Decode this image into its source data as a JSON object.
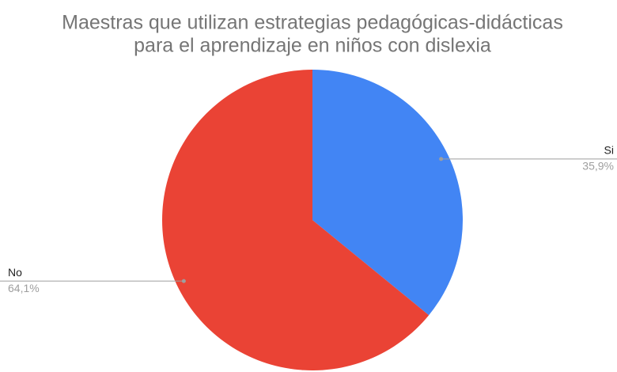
{
  "chart_data": {
    "type": "pie",
    "title": [
      "Maestras que utilizan estrategias pedagógicas-didácticas",
      "para el aprendizaje en niños con dislexia"
    ],
    "categories": [
      "Si",
      "No"
    ],
    "values": [
      35.9,
      64.1
    ],
    "value_labels": [
      "35,9%",
      "64,1%"
    ],
    "colors": [
      "#4285f4",
      "#ea4335"
    ]
  }
}
